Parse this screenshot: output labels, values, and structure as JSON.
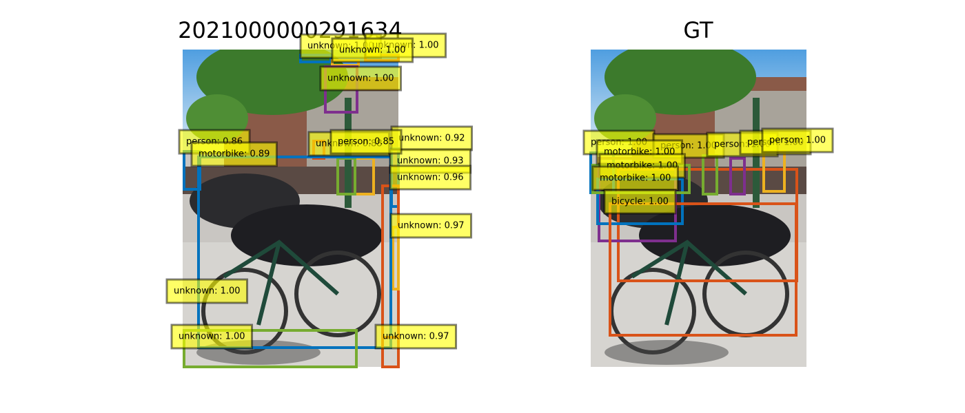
{
  "panels": [
    {
      "title": "2021000000291634",
      "detections": [
        {
          "label": "unknown: 1.00",
          "color": "#0072bd"
        },
        {
          "label": "unknown: 1.00",
          "color": "#d95319"
        },
        {
          "label": "unknown: 1.00",
          "color": "#edb120"
        },
        {
          "label": "unknown: 1.00",
          "color": "#7e2f8e"
        },
        {
          "label": "unknown: 0.92",
          "color": "#0072bd"
        },
        {
          "label": "unknown: 0.88",
          "color": "#d95319"
        },
        {
          "label": "unknown: 0.93",
          "color": "#edb120"
        },
        {
          "label": "person: 0.85",
          "color": "#77ac30"
        },
        {
          "label": "person: 0.86",
          "color": "#7e2f8e"
        },
        {
          "label": "motorbike: 0.89",
          "color": "#0072bd"
        },
        {
          "label": "unknown: 0.96",
          "color": "#d95319"
        },
        {
          "label": "unknown: 0.97",
          "color": "#edb120"
        },
        {
          "label": "unknown: 1.00",
          "color": "#0072bd"
        },
        {
          "label": "unknown: 1.00",
          "color": "#77ac30"
        },
        {
          "label": "unknown: 0.97",
          "color": "#d95319"
        }
      ]
    },
    {
      "title": "GT",
      "detections": [
        {
          "label": "person: 1.00",
          "color": "#0072bd"
        },
        {
          "label": "person: 1.00",
          "color": "#d95319"
        },
        {
          "label": "person: 1.00",
          "color": "#77ac30"
        },
        {
          "label": "person: 1.00",
          "color": "#7e2f8e"
        },
        {
          "label": "person: 1.00",
          "color": "#edb120"
        },
        {
          "label": "motorbike: 1.00",
          "color": "#7e2f8e"
        },
        {
          "label": "motorbike: 1.00",
          "color": "#0072bd"
        },
        {
          "label": "motorbike: 1.00",
          "color": "#77ac30"
        },
        {
          "label": "bicycle: 1.00",
          "color": "#d95319"
        }
      ]
    }
  ]
}
